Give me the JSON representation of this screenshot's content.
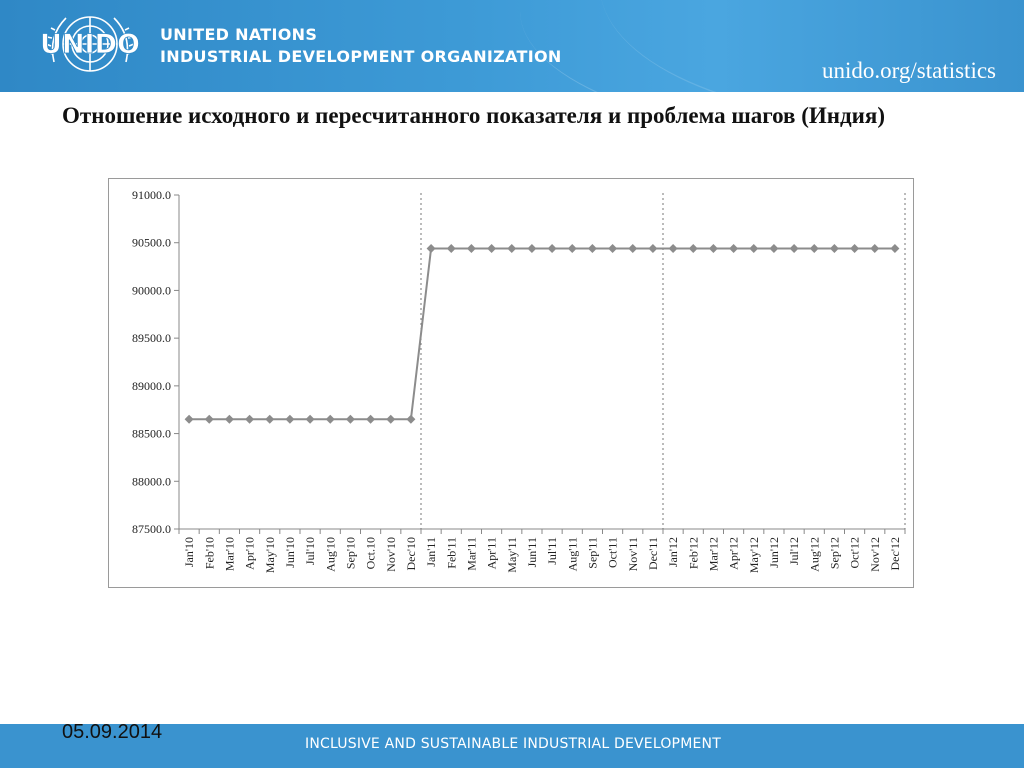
{
  "header": {
    "logo_text": "UNIDO",
    "org_line1": "UNITED NATIONS",
    "org_line2": "INDUSTRIAL DEVELOPMENT ORGANIZATION",
    "site": "unido.org/statistics"
  },
  "slide": {
    "title": "Отношение исходного и пересчитанного показателя и проблема шагов (Индия)"
  },
  "footer": {
    "tagline": "INCLUSIVE AND SUSTAINABLE INDUSTRIAL DEVELOPMENT",
    "date": "05.09.2014"
  },
  "colors": {
    "brand_blue": "#3a93cf",
    "series": "#8c8c8c",
    "grid": "#c8c8c8"
  },
  "chart_data": {
    "type": "line",
    "title": "",
    "xlabel": "",
    "ylabel": "",
    "ylim": [
      87500,
      91000
    ],
    "yticks": [
      87500,
      88000,
      88500,
      89000,
      89500,
      90000,
      90500,
      91000
    ],
    "ytick_labels": [
      "87500.0",
      "88000.0",
      "88500.0",
      "89000.0",
      "89500.0",
      "90000.0",
      "90500.0",
      "91000.0"
    ],
    "categories": [
      "Jan'10",
      "Feb'10",
      "Mar'10",
      "Apr'10",
      "May'10",
      "Jun'10",
      "Jul'10",
      "Aug'10",
      "Sep'10",
      "Oct.10",
      "Nov'10",
      "Dec'10",
      "Jan'11",
      "Feb'11",
      "Mar'11",
      "Apr'11",
      "May'11",
      "Jun'11",
      "Jul'11",
      "Aug'11",
      "Sep'11",
      "Oct'11",
      "Nov'11",
      "Dec'11",
      "Jan'12",
      "Feb'12",
      "Mar'12",
      "Apr'12",
      "May'12",
      "Jun'12",
      "Jul'12",
      "Aug'12",
      "Sep'12",
      "Oct'12",
      "Nov'12",
      "Dec'12"
    ],
    "series": [
      {
        "values": [
          88650,
          88650,
          88650,
          88650,
          88650,
          88650,
          88650,
          88650,
          88650,
          88650,
          88650,
          88650,
          90440,
          90440,
          90440,
          90440,
          90440,
          90440,
          90440,
          90440,
          90440,
          90440,
          90440,
          90440,
          90440,
          90440,
          90440,
          90440,
          90440,
          90440,
          90440,
          90440,
          90440,
          90440,
          90440,
          90440
        ]
      }
    ],
    "year_dividers_after": [
      "Dec'10",
      "Dec'11",
      "Dec'12"
    ],
    "grid": false,
    "legend": "none",
    "marker": "diamond"
  }
}
